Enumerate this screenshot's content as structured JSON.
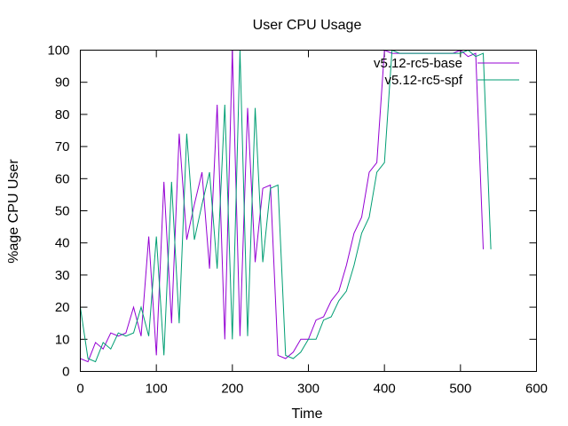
{
  "chart_data": {
    "type": "line",
    "title": "User CPU Usage",
    "xlabel": "Time",
    "ylabel": "%age CPU User",
    "xlim": [
      0,
      600
    ],
    "ylim": [
      0,
      100
    ],
    "xticks": [
      0,
      100,
      200,
      300,
      400,
      500,
      600
    ],
    "yticks": [
      0,
      10,
      20,
      30,
      40,
      50,
      60,
      70,
      80,
      90,
      100
    ],
    "grid": false,
    "legend_position": "top-right",
    "series": [
      {
        "name": "v5.12-rc5-base",
        "color": "#9400d3",
        "x": [
          0,
          10,
          20,
          30,
          40,
          50,
          60,
          70,
          80,
          90,
          100,
          110,
          120,
          130,
          140,
          150,
          160,
          170,
          180,
          190,
          200,
          210,
          220,
          230,
          240,
          250,
          260,
          270,
          280,
          290,
          300,
          310,
          320,
          330,
          340,
          350,
          360,
          370,
          380,
          390,
          400,
          410,
          420,
          430,
          440,
          450,
          460,
          470,
          480,
          490,
          500,
          510,
          520,
          530
        ],
        "y": [
          4,
          3,
          9,
          7,
          12,
          11,
          12,
          20,
          11,
          42,
          5,
          59,
          15,
          74,
          41,
          52,
          62,
          32,
          83,
          10,
          100,
          11,
          82,
          34,
          57,
          58,
          5,
          4,
          6,
          10,
          10,
          16,
          17,
          22,
          25,
          33,
          43,
          48,
          62,
          65,
          100,
          99,
          99,
          99,
          99,
          99,
          99,
          99,
          99,
          99,
          100,
          98,
          99,
          38
        ]
      },
      {
        "name": "v5.12-rc5-spf",
        "color": "#009e73",
        "x": [
          0,
          10,
          20,
          30,
          40,
          50,
          60,
          70,
          80,
          90,
          100,
          110,
          120,
          130,
          140,
          150,
          160,
          170,
          180,
          190,
          200,
          210,
          220,
          230,
          240,
          250,
          260,
          270,
          280,
          290,
          300,
          310,
          320,
          330,
          340,
          350,
          360,
          370,
          380,
          390,
          400,
          410,
          420,
          430,
          440,
          450,
          460,
          470,
          480,
          490,
          500,
          510,
          520,
          530,
          540
        ],
        "y": [
          20,
          4,
          3,
          9,
          7,
          12,
          11,
          12,
          20,
          11,
          42,
          5,
          59,
          15,
          74,
          41,
          52,
          62,
          32,
          83,
          10,
          100,
          11,
          82,
          34,
          57,
          58,
          5,
          4,
          6,
          10,
          10,
          16,
          17,
          22,
          25,
          33,
          43,
          48,
          62,
          65,
          100,
          99,
          99,
          99,
          99,
          99,
          99,
          99,
          99,
          99,
          100,
          98,
          99,
          38
        ]
      }
    ]
  }
}
